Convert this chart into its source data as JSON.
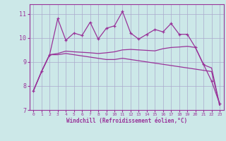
{
  "xlabel": "Windchill (Refroidissement éolien,°C)",
  "bg_color": "#cce8e8",
  "line_color": "#993399",
  "grid_color": "#aaaacc",
  "x": [
    0,
    1,
    2,
    3,
    4,
    5,
    6,
    7,
    8,
    9,
    10,
    11,
    12,
    13,
    14,
    15,
    16,
    17,
    18,
    19,
    20,
    21,
    22,
    23
  ],
  "series1": [
    7.8,
    8.6,
    9.3,
    9.3,
    9.35,
    9.3,
    9.25,
    9.2,
    9.15,
    9.1,
    9.1,
    9.15,
    9.1,
    9.05,
    9.0,
    8.95,
    8.9,
    8.85,
    8.8,
    8.75,
    8.7,
    8.65,
    8.6,
    7.2
  ],
  "series2": [
    7.8,
    8.6,
    9.3,
    9.35,
    9.45,
    9.42,
    9.4,
    9.38,
    9.35,
    9.38,
    9.42,
    9.5,
    9.52,
    9.5,
    9.48,
    9.46,
    9.55,
    9.6,
    9.62,
    9.65,
    9.6,
    8.88,
    8.75,
    7.2
  ],
  "series3": [
    7.8,
    8.6,
    9.3,
    10.8,
    9.9,
    10.2,
    10.1,
    10.65,
    9.95,
    10.4,
    10.5,
    11.1,
    10.2,
    9.95,
    10.15,
    10.35,
    10.25,
    10.6,
    10.15,
    10.15,
    9.6,
    8.9,
    8.2,
    7.25
  ],
  "ylim": [
    7,
    11.4
  ],
  "xlim": [
    -0.5,
    23.5
  ],
  "yticks": [
    7,
    8,
    9,
    10,
    11
  ],
  "xticks": [
    0,
    1,
    2,
    3,
    4,
    5,
    6,
    7,
    8,
    9,
    10,
    11,
    12,
    13,
    14,
    15,
    16,
    17,
    18,
    19,
    20,
    21,
    22,
    23
  ]
}
